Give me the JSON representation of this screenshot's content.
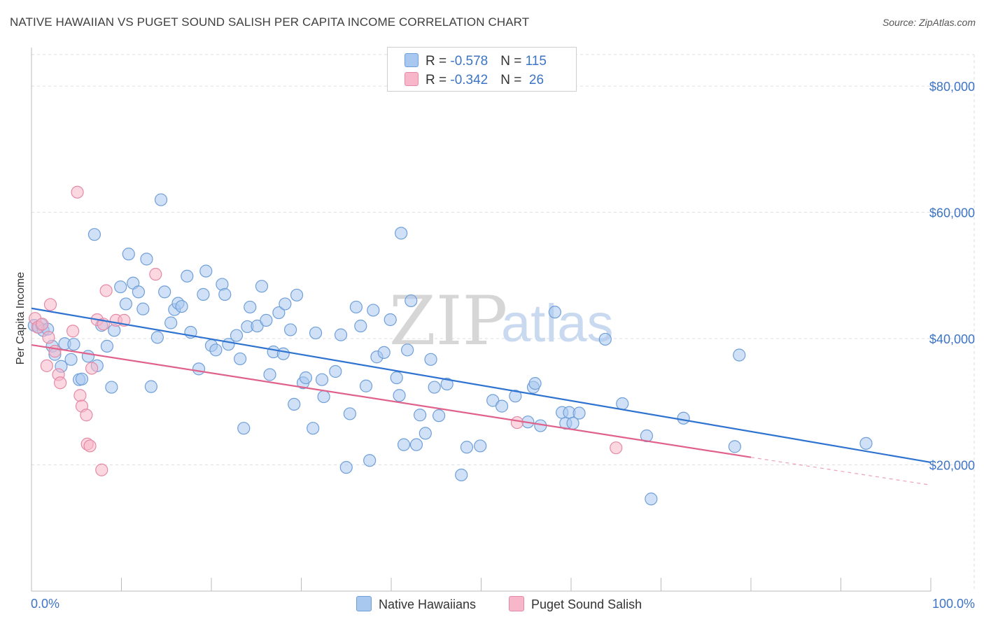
{
  "title": "NATIVE HAWAIIAN VS PUGET SOUND SALISH PER CAPITA INCOME CORRELATION CHART",
  "source": "Source: ZipAtlas.com",
  "legend": {
    "rows": [
      {
        "r_label": "R = ",
        "r_value": "-0.578",
        "n_label": "N = ",
        "n_value": "115"
      },
      {
        "r_label": "R = ",
        "r_value": "-0.342",
        "n_label": "N = ",
        "n_value": " 26"
      }
    ]
  },
  "bottom_legend": {
    "native": "Native Hawaiians",
    "puget": "Puget Sound Salish"
  },
  "watermark": {
    "zip": "ZIP",
    "atlas": "atlas"
  },
  "colors": {
    "native_fill": "#a9c8f0",
    "native_stroke": "#6f9fd8",
    "native_line": "#2f73d0",
    "puget_fill": "#f7b6c9",
    "puget_stroke": "#e58aa6",
    "puget_line": "#e0628a",
    "axis_text": "#3d74c4",
    "grid": "#dddddd"
  },
  "chart_data": {
    "type": "scatter",
    "title": "NATIVE HAWAIIAN VS PUGET SOUND SALISH PER CAPITA INCOME CORRELATION CHART",
    "xlabel": "",
    "ylabel": "Per Capita Income",
    "xlim": [
      0,
      100
    ],
    "ylim": [
      0,
      85000
    ],
    "x_tick_labels": [
      "0.0%",
      "100.0%"
    ],
    "y_ticks": [
      20000,
      40000,
      60000,
      80000
    ],
    "y_tick_labels": [
      "$20,000",
      "$40,000",
      "$60,000",
      "$80,000"
    ],
    "grid": true,
    "series": [
      {
        "name": "Native Hawaiians",
        "R": -0.578,
        "N": 115,
        "trend": {
          "x0": 0,
          "y0": 44800,
          "x1": 100,
          "y1": 20400
        },
        "points": [
          [
            0.3,
            42100
          ],
          [
            0.8,
            41800
          ],
          [
            1.1,
            42200
          ],
          [
            1.3,
            41300
          ],
          [
            1.8,
            41500
          ],
          [
            2.3,
            38800
          ],
          [
            2.6,
            37500
          ],
          [
            3.3,
            35600
          ],
          [
            3.7,
            39200
          ],
          [
            4.4,
            36700
          ],
          [
            4.7,
            39100
          ],
          [
            5.3,
            33500
          ],
          [
            5.6,
            33600
          ],
          [
            6.3,
            37200
          ],
          [
            7.0,
            56500
          ],
          [
            7.3,
            35700
          ],
          [
            7.8,
            42100
          ],
          [
            8.4,
            38800
          ],
          [
            8.9,
            32300
          ],
          [
            9.2,
            41300
          ],
          [
            9.9,
            48200
          ],
          [
            10.5,
            45500
          ],
          [
            10.8,
            53400
          ],
          [
            11.3,
            48800
          ],
          [
            11.9,
            47400
          ],
          [
            12.4,
            44700
          ],
          [
            12.8,
            52600
          ],
          [
            13.3,
            32400
          ],
          [
            14.0,
            40200
          ],
          [
            14.4,
            62000
          ],
          [
            14.8,
            47400
          ],
          [
            15.5,
            42500
          ],
          [
            15.9,
            44600
          ],
          [
            16.3,
            45600
          ],
          [
            16.7,
            45100
          ],
          [
            17.3,
            49900
          ],
          [
            17.7,
            41000
          ],
          [
            18.6,
            35200
          ],
          [
            19.1,
            47000
          ],
          [
            19.4,
            50700
          ],
          [
            20.0,
            38900
          ],
          [
            20.5,
            38200
          ],
          [
            21.2,
            48600
          ],
          [
            21.5,
            47000
          ],
          [
            21.9,
            39100
          ],
          [
            22.8,
            40500
          ],
          [
            23.2,
            36800
          ],
          [
            23.6,
            25800
          ],
          [
            24.0,
            41900
          ],
          [
            24.3,
            45000
          ],
          [
            25.1,
            42000
          ],
          [
            25.6,
            48300
          ],
          [
            26.1,
            42900
          ],
          [
            26.5,
            34300
          ],
          [
            26.9,
            37900
          ],
          [
            27.5,
            44100
          ],
          [
            28.0,
            37600
          ],
          [
            28.2,
            45500
          ],
          [
            28.8,
            41400
          ],
          [
            29.2,
            29600
          ],
          [
            29.5,
            46900
          ],
          [
            30.2,
            33000
          ],
          [
            30.5,
            33800
          ],
          [
            31.3,
            25800
          ],
          [
            31.6,
            40900
          ],
          [
            32.3,
            33500
          ],
          [
            32.5,
            30800
          ],
          [
            33.8,
            34800
          ],
          [
            34.4,
            40600
          ],
          [
            35.0,
            19600
          ],
          [
            35.4,
            28100
          ],
          [
            36.1,
            45000
          ],
          [
            36.6,
            42000
          ],
          [
            37.2,
            32500
          ],
          [
            37.6,
            20700
          ],
          [
            38.0,
            44500
          ],
          [
            38.4,
            37100
          ],
          [
            39.2,
            37800
          ],
          [
            39.9,
            43000
          ],
          [
            40.6,
            33800
          ],
          [
            40.9,
            31000
          ],
          [
            41.1,
            56700
          ],
          [
            41.4,
            23200
          ],
          [
            41.8,
            38200
          ],
          [
            42.2,
            46000
          ],
          [
            42.8,
            23200
          ],
          [
            43.2,
            27900
          ],
          [
            43.8,
            25000
          ],
          [
            44.4,
            36700
          ],
          [
            44.8,
            32300
          ],
          [
            45.3,
            27800
          ],
          [
            46.2,
            32800
          ],
          [
            47.8,
            18400
          ],
          [
            48.4,
            22800
          ],
          [
            49.9,
            23000
          ],
          [
            51.3,
            30200
          ],
          [
            52.3,
            29300
          ],
          [
            53.8,
            30900
          ],
          [
            55.2,
            26800
          ],
          [
            55.8,
            32300
          ],
          [
            56.0,
            32900
          ],
          [
            56.6,
            26200
          ],
          [
            58.2,
            44200
          ],
          [
            59.0,
            28300
          ],
          [
            59.4,
            26600
          ],
          [
            59.8,
            28300
          ],
          [
            60.2,
            26600
          ],
          [
            60.9,
            28200
          ],
          [
            63.8,
            39900
          ],
          [
            65.7,
            29700
          ],
          [
            68.4,
            24600
          ],
          [
            68.9,
            14600
          ],
          [
            72.5,
            27400
          ],
          [
            78.2,
            22900
          ],
          [
            78.7,
            37400
          ],
          [
            92.8,
            23400
          ]
        ]
      },
      {
        "name": "Puget Sound Salish",
        "R": -0.342,
        "N": 26,
        "trend": {
          "x0": 0,
          "y0": 39000,
          "x1": 80,
          "y1": 21200
        },
        "trend_dashed_to": {
          "x": 100,
          "y": 16800
        },
        "points": [
          [
            0.4,
            43200
          ],
          [
            0.7,
            41800
          ],
          [
            1.2,
            42300
          ],
          [
            1.7,
            35700
          ],
          [
            1.9,
            40200
          ],
          [
            2.1,
            45400
          ],
          [
            2.6,
            38000
          ],
          [
            3.0,
            34300
          ],
          [
            3.2,
            33000
          ],
          [
            4.6,
            41200
          ],
          [
            5.1,
            63200
          ],
          [
            5.4,
            31000
          ],
          [
            5.6,
            29300
          ],
          [
            6.1,
            27900
          ],
          [
            6.2,
            23300
          ],
          [
            6.5,
            23000
          ],
          [
            6.7,
            35300
          ],
          [
            7.3,
            43000
          ],
          [
            7.8,
            19200
          ],
          [
            8.0,
            42300
          ],
          [
            8.3,
            47600
          ],
          [
            9.4,
            42900
          ],
          [
            10.3,
            42900
          ],
          [
            13.8,
            50200
          ],
          [
            54.0,
            26700
          ],
          [
            65.0,
            22700
          ]
        ]
      }
    ]
  }
}
